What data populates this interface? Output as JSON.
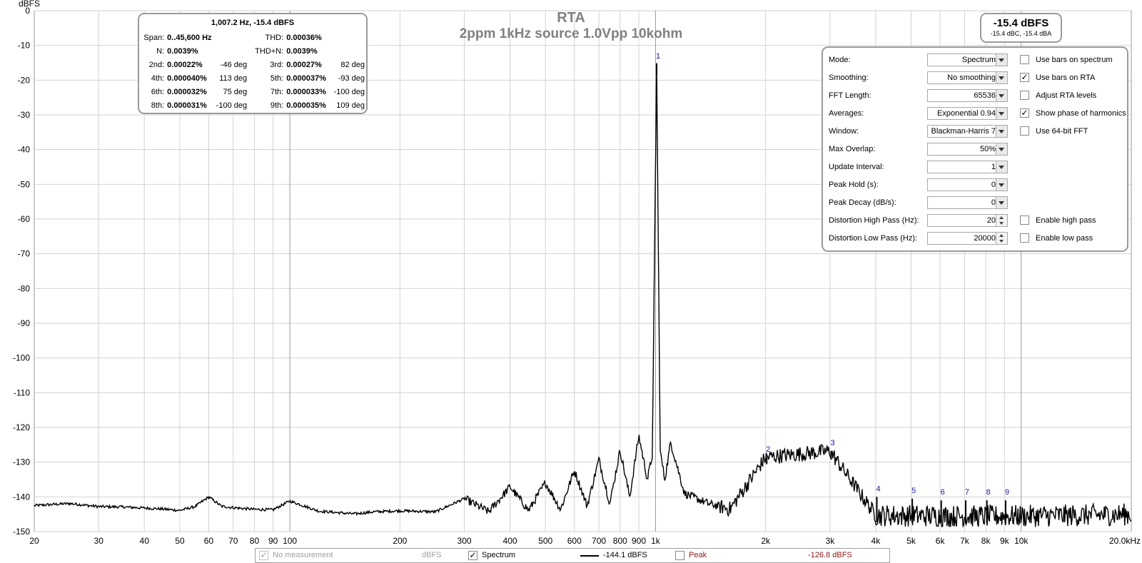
{
  "chart_data": {
    "type": "line",
    "title": "RTA",
    "subtitle": "2ppm 1kHz source 1.0Vpp 10kohm",
    "ylabel": "dBFS",
    "xlabel": "",
    "xscale": "log",
    "xlim": [
      20,
      20000
    ],
    "ylim": [
      -150,
      0
    ],
    "grid": true,
    "x_ticks": [
      {
        "v": 20,
        "t": "20"
      },
      {
        "v": 30,
        "t": "30"
      },
      {
        "v": 40,
        "t": "40"
      },
      {
        "v": 50,
        "t": "50"
      },
      {
        "v": 60,
        "t": "60"
      },
      {
        "v": 70,
        "t": "70"
      },
      {
        "v": 80,
        "t": "80"
      },
      {
        "v": 90,
        "t": "90"
      },
      {
        "v": 100,
        "t": "100"
      },
      {
        "v": 200,
        "t": "200"
      },
      {
        "v": 300,
        "t": "300"
      },
      {
        "v": 400,
        "t": "400"
      },
      {
        "v": 500,
        "t": "500"
      },
      {
        "v": 600,
        "t": "600"
      },
      {
        "v": 700,
        "t": "700"
      },
      {
        "v": 800,
        "t": "800"
      },
      {
        "v": 900,
        "t": "900"
      },
      {
        "v": 1000,
        "t": "1k"
      },
      {
        "v": 2000,
        "t": "2k"
      },
      {
        "v": 3000,
        "t": "3k"
      },
      {
        "v": 4000,
        "t": "4k"
      },
      {
        "v": 5000,
        "t": "5k"
      },
      {
        "v": 6000,
        "t": "6k"
      },
      {
        "v": 7000,
        "t": "7k"
      },
      {
        "v": 8000,
        "t": "8k"
      },
      {
        "v": 9000,
        "t": "9k"
      },
      {
        "v": 10000,
        "t": "10k"
      },
      {
        "v": 20000,
        "t": "20.0kHz"
      }
    ],
    "y_ticks": [
      0,
      -10,
      -20,
      -30,
      -40,
      -50,
      -60,
      -70,
      -80,
      -90,
      -100,
      -110,
      -120,
      -130,
      -140,
      -150
    ],
    "series": [
      {
        "name": "Spectrum",
        "color": "#000000",
        "x": [
          20,
          25,
          30,
          35,
          40,
          45,
          50,
          55,
          60,
          65,
          70,
          80,
          90,
          100,
          120,
          150,
          170,
          200,
          250,
          300,
          350,
          400,
          450,
          500,
          550,
          600,
          650,
          700,
          750,
          800,
          850,
          900,
          950,
          980,
          1007,
          1030,
          1060,
          1100,
          1200,
          1400,
          1600,
          2000,
          3000,
          4000,
          5000,
          6000,
          8000,
          10000,
          15000,
          20000
        ],
        "y": [
          -142.5,
          -141.9,
          -142.8,
          -142.9,
          -143.2,
          -143.5,
          -143.9,
          -142.8,
          -140.0,
          -142.7,
          -143.1,
          -143.6,
          -143.7,
          -141.2,
          -144.1,
          -144.9,
          -144.3,
          -144.0,
          -144.3,
          -140.5,
          -144.3,
          -137.1,
          -143.9,
          -135.9,
          -143.6,
          -132.4,
          -142.6,
          -129.2,
          -141.9,
          -126.6,
          -140.1,
          -122.3,
          -135.0,
          -128.0,
          -15.4,
          -127.0,
          -135.0,
          -124.3,
          -139.0,
          -142.0,
          -143.5,
          -128.6,
          -126.8,
          -145.3,
          -145.4,
          -145.5,
          -145.6,
          -145.5,
          -145.3,
          -145.0
        ]
      }
    ],
    "harmonic_markers": [
      {
        "label": "1",
        "freq": 1007.2,
        "level": -15.4
      },
      {
        "label": "2",
        "freq": 2014,
        "level": -128.6
      },
      {
        "label": "3",
        "freq": 3022,
        "level": -126.8
      },
      {
        "label": "4",
        "freq": 4029,
        "level": -140.0
      },
      {
        "label": "5",
        "freq": 5036,
        "level": -140.5
      },
      {
        "label": "6",
        "freq": 6043,
        "level": -141.0
      },
      {
        "label": "7",
        "freq": 7050,
        "level": -141.0
      },
      {
        "label": "8",
        "freq": 8058,
        "level": -141.0
      },
      {
        "label": "9",
        "freq": 9065,
        "level": -141.0
      }
    ]
  },
  "distortion": {
    "header": "1,007.2 Hz, -15.4 dBFS",
    "span_label": "Span:",
    "span_value": "0..45,600 Hz",
    "thd_label": "THD:",
    "thd_value": "0.00036%",
    "n_label": "N:",
    "n_value": "0.0039%",
    "thdn_label": "THD+N:",
    "thdn_value": "0.0039%",
    "harmonics": [
      {
        "a_label": "2nd:",
        "a_value": "0.00022%",
        "a_phase": "-46 deg",
        "b_label": "3rd:",
        "b_value": "0.00027%",
        "b_phase": "82 deg"
      },
      {
        "a_label": "4th:",
        "a_value": "0.000040%",
        "a_phase": "113 deg",
        "b_label": "5th:",
        "b_value": "0.000037%",
        "b_phase": "-93 deg"
      },
      {
        "a_label": "6th:",
        "a_value": "0.000032%",
        "a_phase": "75 deg",
        "b_label": "7th:",
        "b_value": "0.000033%",
        "b_phase": "-100 deg"
      },
      {
        "a_label": "8th:",
        "a_value": "0.000031%",
        "a_phase": "-100 deg",
        "b_label": "9th:",
        "b_value": "0.000035%",
        "b_phase": "109 deg"
      }
    ]
  },
  "level": {
    "main": "-15.4 dBFS",
    "sub": "-15.4 dBC, -15.4 dBA"
  },
  "controls": {
    "mode": {
      "label": "Mode:",
      "value": "Spectrum"
    },
    "smoothing": {
      "label": "Smoothing:",
      "value": "No  smoothing"
    },
    "fft_length": {
      "label": "FFT Length:",
      "value": "65536"
    },
    "averages": {
      "label": "Averages:",
      "value": "Exponential 0.94"
    },
    "window": {
      "label": "Window:",
      "value": "Blackman-Harris 7"
    },
    "max_overlap": {
      "label": "Max Overlap:",
      "value": "50%"
    },
    "update_interval": {
      "label": "Update Interval:",
      "value": "1"
    },
    "peak_hold": {
      "label": "Peak Hold (s):",
      "value": "0"
    },
    "peak_decay": {
      "label": "Peak Decay (dB/s):",
      "value": "0"
    },
    "dist_hp": {
      "label": "Distortion High Pass (Hz):",
      "value": "20"
    },
    "dist_lp": {
      "label": "Distortion Low Pass (Hz):",
      "value": "20000"
    },
    "checks": {
      "bars_spectrum": {
        "label": "Use bars on spectrum",
        "checked": false
      },
      "bars_rta": {
        "label": "Use bars on RTA",
        "checked": true
      },
      "adjust_rta": {
        "label": "Adjust RTA levels",
        "checked": false
      },
      "show_phase": {
        "label": "Show phase of harmonics",
        "checked": true
      },
      "fft64": {
        "label": "Use 64-bit FFT",
        "checked": false
      },
      "enable_hp": {
        "label": "Enable high pass",
        "checked": false
      },
      "enable_lp": {
        "label": "Enable low pass",
        "checked": false
      }
    }
  },
  "legend": {
    "no_measurement": "No measurement",
    "no_measurement_unit": "dBFS",
    "spectrum": "Spectrum",
    "spectrum_value": "-144.1 dBFS",
    "peak": "Peak",
    "peak_value": "-126.8 dBFS"
  }
}
